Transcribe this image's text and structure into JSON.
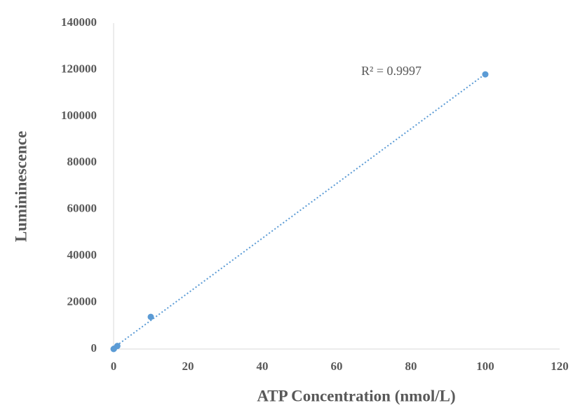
{
  "chart_data": {
    "type": "scatter",
    "x_label": "ATP Concentration (nmol/L)",
    "y_label": "Lumininescence",
    "annotation": "R² = 0.9997",
    "series": [
      {
        "color": "#5b9bd5",
        "x": [
          0,
          0.1,
          1,
          10,
          100
        ],
        "values": [
          0,
          150,
          1300,
          13800,
          118000
        ]
      }
    ],
    "trendline": "linear",
    "xlim": [
      0,
      120
    ],
    "xticks": [
      0,
      20,
      40,
      60,
      80,
      100,
      120
    ],
    "ylim": [
      0,
      140000
    ],
    "yticks": [
      0,
      20000,
      40000,
      60000,
      80000,
      100000,
      120000,
      140000
    ],
    "grid": false
  }
}
